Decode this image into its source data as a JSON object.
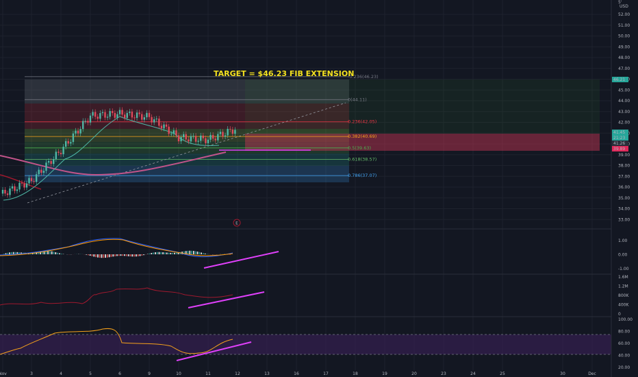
{
  "annotation": {
    "target_text": "TARGET = $46.23 FIB EXTENSION"
  },
  "currency": "USD",
  "corner_label": "5'",
  "colors": {
    "background": "#131722",
    "grid": "#1e222d",
    "up_candle": "#4fb8a6",
    "down_candle": "#e0495a",
    "trendline": "#e040fb",
    "target_text": "#f4e11f",
    "sma": "#c2548a",
    "rsi_band": "#3b2059"
  },
  "price_axis": [
    "52.00",
    "51.00",
    "50.00",
    "49.00",
    "48.00",
    "47.00",
    "46.00",
    "45.00",
    "44.00",
    "43.00",
    "42.00",
    "41.00",
    "40.00",
    "39.00",
    "38.00",
    "37.00",
    "36.00",
    "35.00",
    "34.00",
    "33.00"
  ],
  "price_badges": [
    {
      "text": "46.21",
      "color": "#26a69a"
    },
    {
      "text": "41.45",
      "color": "#26a69a"
    },
    {
      "text": "21:23",
      "color": "#26a69a"
    },
    {
      "text": "41.26",
      "color": "#2a2e39"
    },
    {
      "text": "39.89",
      "color": "#e0295a"
    }
  ],
  "fib_levels": [
    {
      "label": "-0.236(46.23)",
      "price": 46.23,
      "color": "#787b86"
    },
    {
      "label": "0(44.11)",
      "price": 44.11,
      "color": "#787b86"
    },
    {
      "label": "0.236(42.05)",
      "price": 42.05,
      "color": "#f23645"
    },
    {
      "label": "0.382(40.69)",
      "price": 40.69,
      "color": "#f7a21b"
    },
    {
      "label": "0.5(39.63)",
      "price": 39.63,
      "color": "#4caf50"
    },
    {
      "label": "0.618(38.57)",
      "price": 38.57,
      "color": "#66bb6a"
    },
    {
      "label": "0.786(37.07)",
      "price": 37.07,
      "color": "#42a5f5"
    }
  ],
  "macd_axis": [
    "1.00",
    "0.00",
    "-1.00"
  ],
  "volume_axis": [
    "1.6M",
    "1.2M",
    "800K",
    "400K",
    "0"
  ],
  "rsi_axis": [
    "100.00",
    "80.00",
    "60.00",
    "40.00",
    "20.00"
  ],
  "x_axis": [
    "Nov",
    "3",
    "4",
    "5",
    "6",
    "9",
    "10",
    "11",
    "12",
    "13",
    "16",
    "17",
    "18",
    "19",
    "20",
    "23",
    "24",
    "25",
    "30",
    "Dec"
  ],
  "chart_data": {
    "type": "candlestick",
    "x": [
      "Nov",
      "3",
      "4",
      "5",
      "6",
      "9",
      "10",
      "11",
      "12"
    ],
    "approx_close_path": [
      {
        "x": "Nov",
        "y": 35.4
      },
      {
        "x": "3",
        "y": 36.6
      },
      {
        "x": "4",
        "y": 39.4
      },
      {
        "x": "5",
        "y": 42.6
      },
      {
        "x": "6",
        "y": 42.8
      },
      {
        "x": "9",
        "y": 42.5
      },
      {
        "x": "10",
        "y": 40.6
      },
      {
        "x": "11",
        "y": 40.4
      },
      {
        "x": "12",
        "y": 41.45
      }
    ],
    "fib_retracement": {
      "levels": [
        -0.236,
        0,
        0.236,
        0.382,
        0.5,
        0.618,
        0.786
      ],
      "prices": [
        46.23,
        44.11,
        42.05,
        40.69,
        39.63,
        38.57,
        37.07
      ]
    },
    "last_price": 41.45,
    "indicators": [
      "MACD",
      "Volume",
      "RSI"
    ],
    "ylim": [
      33,
      52
    ]
  }
}
